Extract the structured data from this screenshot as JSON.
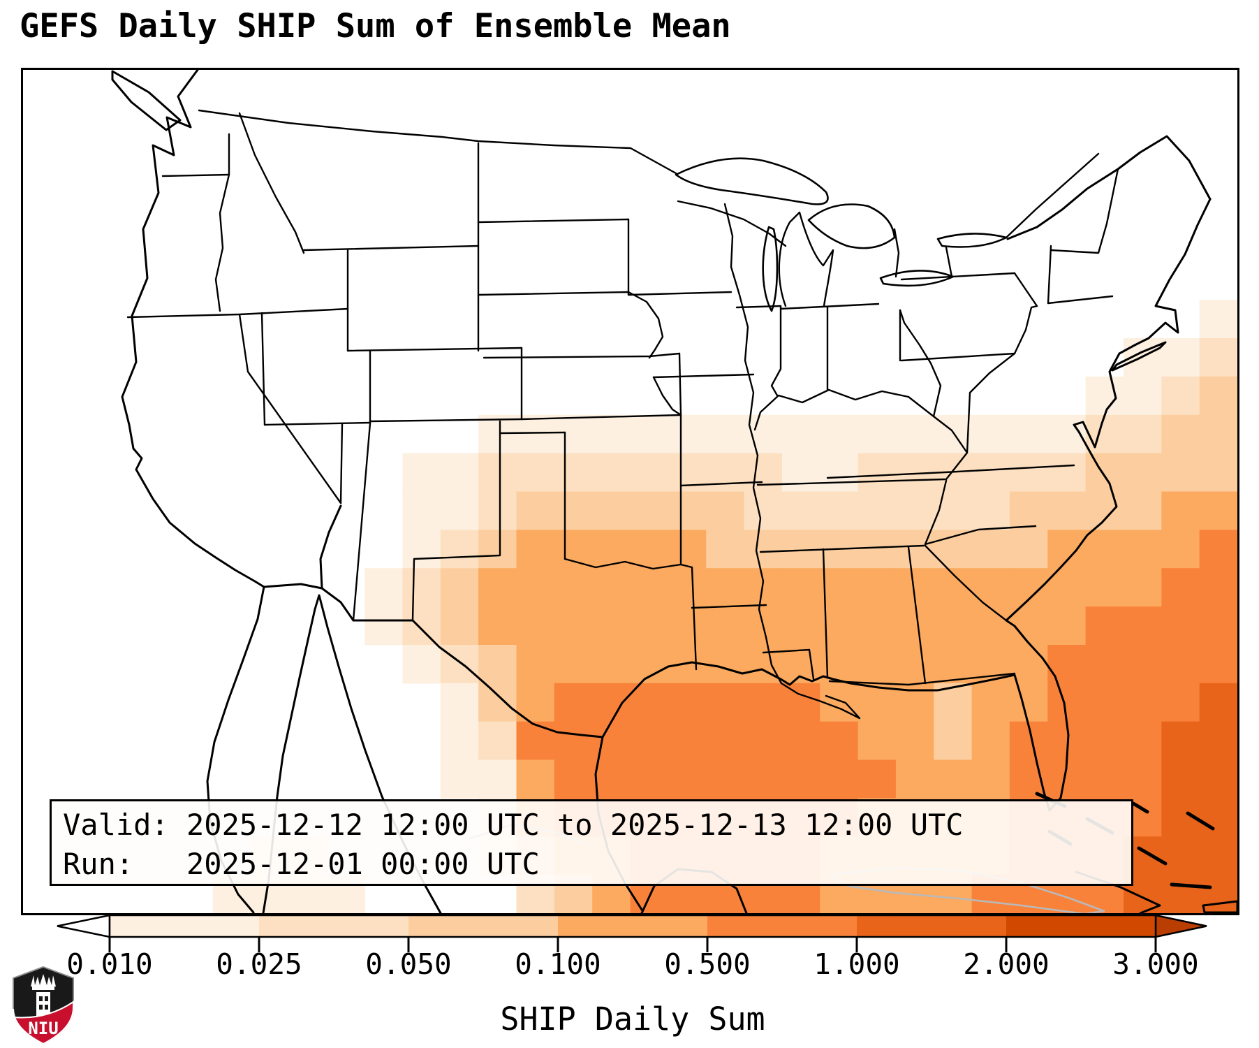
{
  "header": {
    "title": "GEFS Daily SHIP Sum of Ensemble Mean"
  },
  "info_box": {
    "valid_line": "Valid: 2025-12-12 12:00 UTC to 2025-12-13 12:00 UTC",
    "run_line": "Run:   2025-12-01 00:00 UTC"
  },
  "branding": {
    "logo_name": "NIU",
    "logo_text": "NIU",
    "logo_colors": {
      "shield": "#191919",
      "band": "#c8102e",
      "castle": "#ffffff"
    }
  },
  "chart_data": {
    "type": "heatmap",
    "title": "GEFS Daily SHIP Sum of Ensemble Mean",
    "region": "CONUS / Gulf of Mexico / western Atlantic",
    "valid": "2025-12-12 12:00 UTC to 2025-12-13 12:00 UTC",
    "run": "2025-12-01 00:00 UTC",
    "colorbar": {
      "label": "SHIP Daily Sum",
      "tick_labels": [
        "0.010",
        "0.025",
        "0.050",
        "0.100",
        "0.500",
        "1.000",
        "2.000",
        "3.000"
      ],
      "levels": [
        0.01,
        0.025,
        0.05,
        0.1,
        0.5,
        1.0,
        2.0,
        3.0
      ],
      "under_color": "#ffffff",
      "segment_colors": [
        "#fdf0e1",
        "#fce0c1",
        "#fcce9f",
        "#fbaa60",
        "#f9823a",
        "#e9641b",
        "#d14901"
      ],
      "over_color": "#ba3e02",
      "extend": "both",
      "orientation": "horizontal"
    },
    "grid": {
      "note": "SHIP daily-sum field; digits index colorbar bins (0 = below 0.010 / white, 1..7 = bins)",
      "rows": 22,
      "cols": 32,
      "cell_values": [
        "00000000000000000000000000000000",
        "00000000000000000000000000000000",
        "00000000000000000000000000000000",
        "00000000000000000000000000000000",
        "00000000000000000000000000000000",
        "00000000000000000000000000000000",
        "00000000000000000000000000000001",
        "00000000000000000000000000000112",
        "00000000000000000000000000001123",
        "00000000000011111111111111112233",
        "00000000001122222222112222223333",
        "00000000001123333332222222333344",
        "00000000001234444433333333344445",
        "00000000012344444444444444444455",
        "00000000012344444444444444445555",
        "00000000001234444444444444455555",
        "00000000000134555555544434455556",
        "00000000000125555555554434555566",
        "00000000000114555555555444555566",
        "00000000000014555555554444555566",
        "00000011000013445555544444555666",
        "00000111100002345555544445555666"
      ]
    }
  }
}
